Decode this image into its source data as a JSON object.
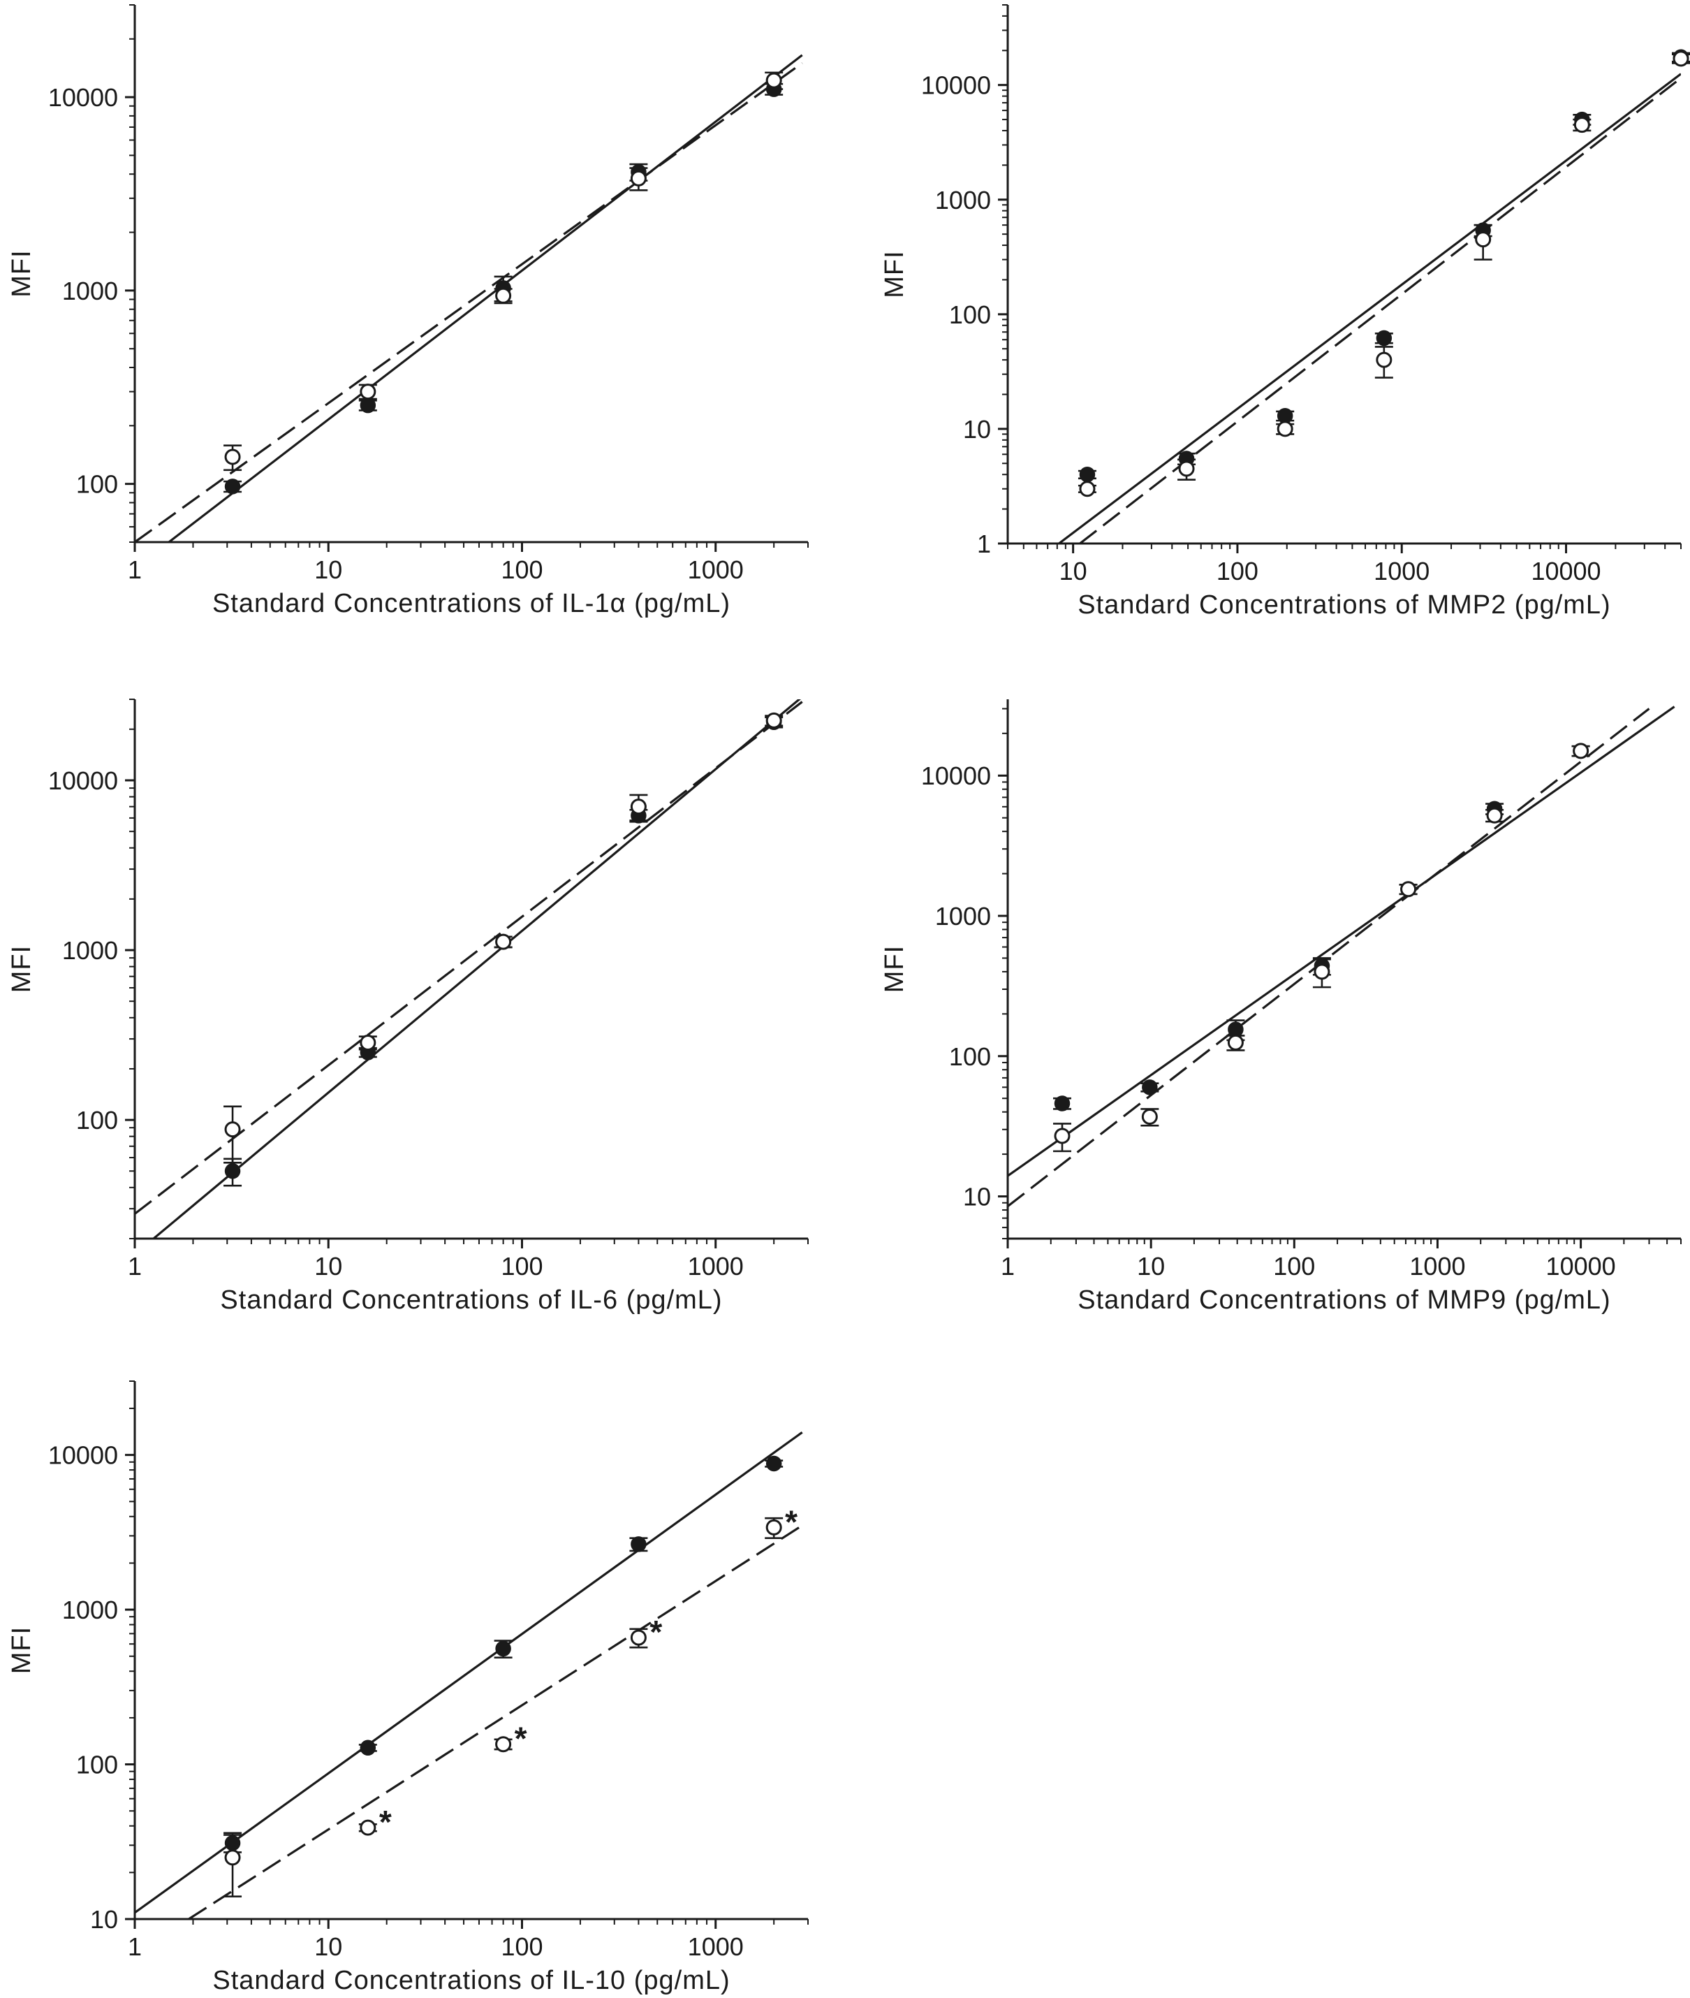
{
  "figure": {
    "caption": ""
  },
  "chart_data": [
    {
      "id": "il1a",
      "type": "scatter",
      "title": "",
      "xlabel": "Standard Concentrations of IL-1α (pg/mL)",
      "ylabel": "MFI",
      "xscale": "log",
      "yscale": "log",
      "xlim": [
        1,
        3000
      ],
      "ylim": [
        50,
        30000
      ],
      "xticks": [
        1,
        10,
        100,
        1000
      ],
      "xtick_labels": [
        "1",
        "10",
        "100",
        "1000"
      ],
      "yticks": [
        100,
        1000,
        10000
      ],
      "ytick_labels": [
        "100",
        "1000",
        "10000"
      ],
      "grid": false,
      "legend": "none",
      "series": [
        {
          "marker": "filled-circle",
          "line": "solid",
          "points": [
            {
              "x": 3.2,
              "y": 97,
              "err": 6
            },
            {
              "x": 16,
              "y": 255,
              "err": 15
            },
            {
              "x": 80,
              "y": 1030,
              "err": 150
            },
            {
              "x": 400,
              "y": 4100,
              "err": 400
            },
            {
              "x": 2000,
              "y": 11000,
              "err": 700
            }
          ],
          "fit": {
            "x": [
              1.5,
              2800
            ],
            "y": [
              50,
              16500
            ]
          }
        },
        {
          "marker": "open-circle",
          "line": "dashed",
          "points": [
            {
              "x": 3.2,
              "y": 138,
              "err": 20
            },
            {
              "x": 16,
              "y": 300,
              "err": 25
            },
            {
              "x": 80,
              "y": 940,
              "err": 80
            },
            {
              "x": 400,
              "y": 3800,
              "err": 500
            },
            {
              "x": 2000,
              "y": 12200,
              "err": 1200
            }
          ],
          "fit": {
            "x": [
              1.0,
              2800
            ],
            "y": [
              50,
              15000
            ]
          }
        }
      ],
      "annotations": []
    },
    {
      "id": "mmp2",
      "type": "scatter",
      "title": "",
      "xlabel": "Standard Concentrations of MMP2 (pg/mL)",
      "ylabel": "MFI",
      "xscale": "log",
      "yscale": "log",
      "xlim": [
        4,
        50000
      ],
      "ylim": [
        1,
        50000
      ],
      "xticks": [
        10,
        100,
        1000,
        10000
      ],
      "xtick_labels": [
        "10",
        "100",
        "1000",
        "10000"
      ],
      "yticks": [
        1,
        10,
        100,
        1000,
        10000
      ],
      "ytick_labels": [
        "1",
        "10",
        "100",
        "1000",
        "10000"
      ],
      "grid": false,
      "legend": "none",
      "series": [
        {
          "marker": "filled-circle",
          "line": "solid",
          "points": [
            {
              "x": 12.2,
              "y": 4.0,
              "err": 0.3
            },
            {
              "x": 49,
              "y": 5.5,
              "err": 0.6
            },
            {
              "x": 195,
              "y": 13,
              "err": 1.2
            },
            {
              "x": 780,
              "y": 62,
              "err": 6
            },
            {
              "x": 3125,
              "y": 540,
              "err": 60
            },
            {
              "x": 12500,
              "y": 5000,
              "err": 500
            },
            {
              "x": 50000,
              "y": 17500,
              "err": 1500
            }
          ],
          "fit": {
            "x": [
              8.2,
              50000
            ],
            "y": [
              1.0,
              12500
            ]
          }
        },
        {
          "marker": "open-circle",
          "line": "dashed",
          "points": [
            {
              "x": 12.2,
              "y": 3.0,
              "err": 0.2
            },
            {
              "x": 49,
              "y": 4.5,
              "err": 0.9
            },
            {
              "x": 195,
              "y": 10,
              "err": 1
            },
            {
              "x": 780,
              "y": 40,
              "err": 12
            },
            {
              "x": 3125,
              "y": 450,
              "err": 150
            },
            {
              "x": 12500,
              "y": 4500,
              "err": 500
            },
            {
              "x": 50000,
              "y": 17000,
              "err": 1500
            }
          ],
          "fit": {
            "x": [
              11,
              50000
            ],
            "y": [
              1.0,
              11500
            ]
          }
        }
      ],
      "annotations": []
    },
    {
      "id": "il6",
      "type": "scatter",
      "title": "",
      "xlabel": "Standard Concentrations of IL-6 (pg/mL)",
      "ylabel": "MFI",
      "xscale": "log",
      "yscale": "log",
      "xlim": [
        1,
        3000
      ],
      "ylim": [
        20,
        30000
      ],
      "xticks": [
        1,
        10,
        100,
        1000
      ],
      "xtick_labels": [
        "1",
        "10",
        "100",
        "1000"
      ],
      "yticks": [
        100,
        1000,
        10000
      ],
      "ytick_labels": [
        "100",
        "1000",
        "10000"
      ],
      "grid": false,
      "legend": "none",
      "series": [
        {
          "marker": "filled-circle",
          "line": "solid",
          "points": [
            {
              "x": 3.2,
              "y": 50,
              "err": 9
            },
            {
              "x": 16,
              "y": 250,
              "err": 15
            },
            {
              "x": 80,
              "y": 1120,
              "err": 80
            },
            {
              "x": 400,
              "y": 6200,
              "err": 500
            },
            {
              "x": 2000,
              "y": 22000,
              "err": 1500
            }
          ],
          "fit": {
            "x": [
              1.25,
              2800
            ],
            "y": [
              20,
              31000
            ]
          }
        },
        {
          "marker": "open-circle",
          "line": "dashed",
          "points": [
            {
              "x": 3.2,
              "y": 88,
              "err": 32
            },
            {
              "x": 16,
              "y": 285,
              "err": 25
            },
            {
              "x": 80,
              "y": 1120,
              "err": 80
            },
            {
              "x": 400,
              "y": 7000,
              "err": 1200
            },
            {
              "x": 2000,
              "y": 22500,
              "err": 1500
            }
          ],
          "fit": {
            "x": [
              1.0,
              2800
            ],
            "y": [
              28,
              29000
            ]
          }
        }
      ],
      "annotations": []
    },
    {
      "id": "mmp9",
      "type": "scatter",
      "title": "",
      "xlabel": "Standard Concentrations of MMP9 (pg/mL)",
      "ylabel": "MFI",
      "xscale": "log",
      "yscale": "log",
      "xlim": [
        1,
        50000
      ],
      "ylim": [
        5,
        35000
      ],
      "xticks": [
        1,
        10,
        100,
        1000,
        10000
      ],
      "xtick_labels": [
        "1",
        "10",
        "100",
        "1000",
        "10000"
      ],
      "yticks": [
        10,
        100,
        1000,
        10000
      ],
      "ytick_labels": [
        "10",
        "100",
        "1000",
        "10000"
      ],
      "grid": false,
      "legend": "none",
      "series": [
        {
          "marker": "filled-circle",
          "line": "solid",
          "points": [
            {
              "x": 2.4,
              "y": 46,
              "err": 4
            },
            {
              "x": 9.8,
              "y": 60,
              "err": 4
            },
            {
              "x": 39,
              "y": 155,
              "err": 25
            },
            {
              "x": 156,
              "y": 440,
              "err": 60
            },
            {
              "x": 625,
              "y": 1550,
              "err": 120
            },
            {
              "x": 2500,
              "y": 5800,
              "err": 500
            },
            {
              "x": 10000,
              "y": 15000,
              "err": 1200
            }
          ],
          "fit": {
            "x": [
              1.0,
              45000
            ],
            "y": [
              14,
              31000
            ]
          }
        },
        {
          "marker": "open-circle",
          "line": "dashed",
          "points": [
            {
              "x": 2.4,
              "y": 27,
              "err": 6
            },
            {
              "x": 9.8,
              "y": 37,
              "err": 5
            },
            {
              "x": 39,
              "y": 125,
              "err": 15
            },
            {
              "x": 156,
              "y": 400,
              "err": 90
            },
            {
              "x": 625,
              "y": 1550,
              "err": 120
            },
            {
              "x": 2500,
              "y": 5200,
              "err": 500
            },
            {
              "x": 10000,
              "y": 15000,
              "err": 1200
            }
          ],
          "fit": {
            "x": [
              1.0,
              30000
            ],
            "y": [
              8.5,
              30000
            ]
          }
        }
      ],
      "annotations": []
    },
    {
      "id": "il10",
      "type": "scatter",
      "title": "",
      "xlabel": "Standard Concentrations of IL-10 (pg/mL)",
      "ylabel": "MFI",
      "xscale": "log",
      "yscale": "log",
      "xlim": [
        1,
        3000
      ],
      "ylim": [
        10,
        30000
      ],
      "xticks": [
        1,
        10,
        100,
        1000
      ],
      "xtick_labels": [
        "1",
        "10",
        "100",
        "1000"
      ],
      "yticks": [
        10,
        100,
        1000,
        10000
      ],
      "ytick_labels": [
        "10",
        "100",
        "1000",
        "10000"
      ],
      "grid": false,
      "legend": "none",
      "series": [
        {
          "marker": "filled-circle",
          "line": "solid",
          "points": [
            {
              "x": 3.2,
              "y": 31,
              "err": 4
            },
            {
              "x": 16,
              "y": 128,
              "err": 6
            },
            {
              "x": 80,
              "y": 560,
              "err": 70
            },
            {
              "x": 400,
              "y": 2650,
              "err": 250
            },
            {
              "x": 2000,
              "y": 8800,
              "err": 400
            }
          ],
          "fit": {
            "x": [
              1.0,
              2800
            ],
            "y": [
              11,
              14000
            ]
          }
        },
        {
          "marker": "open-circle",
          "line": "dashed",
          "points": [
            {
              "x": 3.2,
              "y": 25,
              "err": 11
            },
            {
              "x": 16,
              "y": 39,
              "err": 2
            },
            {
              "x": 80,
              "y": 135,
              "err": 10
            },
            {
              "x": 400,
              "y": 660,
              "err": 90
            },
            {
              "x": 2000,
              "y": 3400,
              "err": 500
            }
          ],
          "fit": {
            "x": [
              1.9,
              2800
            ],
            "y": [
              10,
              3500
            ]
          }
        }
      ],
      "annotations": [
        {
          "text": "*",
          "series": 1,
          "point": 1
        },
        {
          "text": "*",
          "series": 1,
          "point": 2
        },
        {
          "text": "*",
          "series": 1,
          "point": 3
        },
        {
          "text": "*",
          "series": 1,
          "point": 4
        }
      ]
    }
  ]
}
